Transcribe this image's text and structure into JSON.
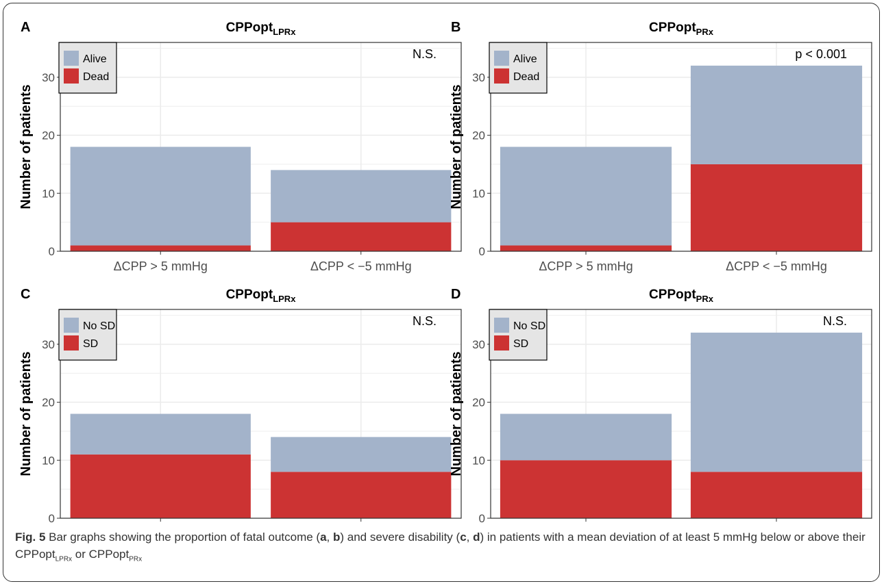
{
  "chart_data": [
    {
      "panel": "A",
      "type": "bar",
      "stacked": true,
      "title_main": "CPPopt",
      "title_sub": "LPRx",
      "annotation": "N.S.",
      "ylabel": "Number of patients",
      "ylim": [
        0,
        36
      ],
      "yticks": [
        0,
        10,
        20,
        30
      ],
      "grid": true,
      "legend_position": "top-left",
      "categories": [
        "ΔCPP > 5 mmHg",
        "ΔCPP < −5 mmHg"
      ],
      "series": [
        {
          "name": "Dead",
          "color": "#cc3333",
          "values": [
            1,
            5
          ]
        },
        {
          "name": "Alive",
          "color": "#a3b3ca",
          "values": [
            17,
            9
          ]
        }
      ],
      "legend": [
        {
          "name": "Alive",
          "color": "#a3b3ca"
        },
        {
          "name": "Dead",
          "color": "#cc3333"
        }
      ]
    },
    {
      "panel": "B",
      "type": "bar",
      "stacked": true,
      "title_main": "CPPopt",
      "title_sub": "PRx",
      "annotation": "p < 0.001",
      "ylabel": "Number of patients",
      "ylim": [
        0,
        36
      ],
      "yticks": [
        0,
        10,
        20,
        30
      ],
      "grid": true,
      "legend_position": "top-left",
      "categories": [
        "ΔCPP > 5 mmHg",
        "ΔCPP < −5 mmHg"
      ],
      "series": [
        {
          "name": "Dead",
          "color": "#cc3333",
          "values": [
            1,
            15
          ]
        },
        {
          "name": "Alive",
          "color": "#a3b3ca",
          "values": [
            17,
            17
          ]
        }
      ],
      "legend": [
        {
          "name": "Alive",
          "color": "#a3b3ca"
        },
        {
          "name": "Dead",
          "color": "#cc3333"
        }
      ]
    },
    {
      "panel": "C",
      "type": "bar",
      "stacked": true,
      "title_main": "CPPopt",
      "title_sub": "LPRx",
      "annotation": "N.S.",
      "ylabel": "Number of patients",
      "ylim": [
        0,
        36
      ],
      "yticks": [
        0,
        10,
        20,
        30
      ],
      "grid": true,
      "legend_position": "top-left",
      "categories": [
        "ΔCPP > 5 mmHg",
        "ΔCPP < −5 mmHg"
      ],
      "series": [
        {
          "name": "SD",
          "color": "#cc3333",
          "values": [
            11,
            8
          ]
        },
        {
          "name": "No SD",
          "color": "#a3b3ca",
          "values": [
            7,
            6
          ]
        }
      ],
      "legend": [
        {
          "name": "No SD",
          "color": "#a3b3ca"
        },
        {
          "name": "SD",
          "color": "#cc3333"
        }
      ]
    },
    {
      "panel": "D",
      "type": "bar",
      "stacked": true,
      "title_main": "CPPopt",
      "title_sub": "PRx",
      "annotation": "N.S.",
      "ylabel": "Number of patients",
      "ylim": [
        0,
        36
      ],
      "yticks": [
        0,
        10,
        20,
        30
      ],
      "grid": true,
      "legend_position": "top-left",
      "categories": [
        "ΔCPP > 5 mmHg",
        "ΔCPP < −5 mmHg"
      ],
      "series": [
        {
          "name": "SD",
          "color": "#cc3333",
          "values": [
            10,
            8
          ]
        },
        {
          "name": "No SD",
          "color": "#a3b3ca",
          "values": [
            8,
            24
          ]
        }
      ],
      "legend": [
        {
          "name": "No SD",
          "color": "#a3b3ca"
        },
        {
          "name": "SD",
          "color": "#cc3333"
        }
      ]
    }
  ],
  "caption": {
    "label": "Fig. 5",
    "t1": " Bar graphs showing the proportion of fatal outcome (",
    "a": "a",
    "comma1": ", ",
    "b": "b",
    "t2": ") and severe disability (",
    "c": "c",
    "comma2": ", ",
    "d": "d",
    "t3": ") in patients with a mean deviation of at least 5 mmHg below or above their CPPopt",
    "sub1": "LPRx",
    "t4": " or CPPopt",
    "sub2": "PRx"
  }
}
